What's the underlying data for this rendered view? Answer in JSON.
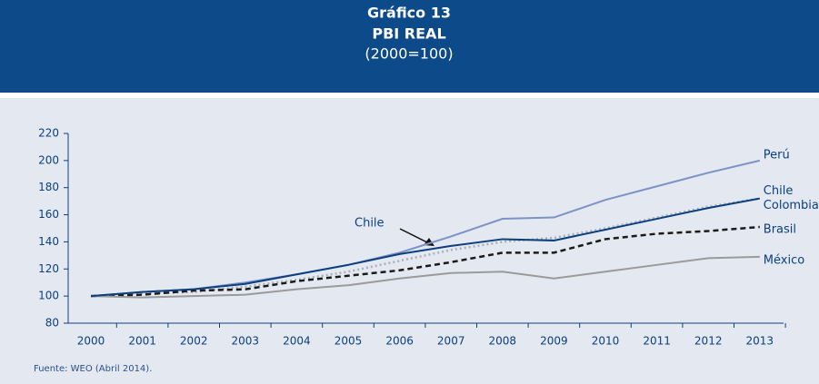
{
  "chart_data": {
    "type": "line",
    "title": "Gráfico 13",
    "subtitle": "PBI REAL",
    "note": "(2000=100)",
    "categories": [
      "2000",
      "2001",
      "2002",
      "2003",
      "2004",
      "2005",
      "2006",
      "2007",
      "2008",
      "2009",
      "2010",
      "2011",
      "2012",
      "2013"
    ],
    "series": [
      {
        "name": "Perú",
        "color": "#7b93c6",
        "style": "solid",
        "values": [
          100,
          103,
          105,
          110,
          116,
          123,
          132,
          144,
          157,
          158,
          171,
          181,
          191,
          200
        ]
      },
      {
        "name": "Colombia",
        "color": "#a9aeb8",
        "style": "dotted",
        "values": [
          100,
          102,
          103,
          107,
          112,
          118,
          126,
          134,
          140,
          143,
          150,
          158,
          166,
          172
        ]
      },
      {
        "name": "Brasil",
        "color": "#1a1a1a",
        "style": "dashed",
        "values": [
          100,
          101,
          104,
          105,
          111,
          115,
          119,
          125,
          132,
          132,
          142,
          146,
          148,
          151
        ]
      },
      {
        "name": "México",
        "color": "#9a9a9a",
        "style": "solid",
        "values": [
          100,
          99,
          100,
          101,
          105,
          108,
          113,
          117,
          118,
          113,
          118,
          123,
          128,
          129
        ]
      },
      {
        "name": "Chile",
        "color": "#0b3f7e",
        "style": "solid",
        "values": [
          100,
          103,
          105,
          109,
          116,
          123,
          131,
          137,
          142,
          141,
          149,
          157,
          165,
          172
        ]
      }
    ],
    "annotation": "Chile",
    "source": "Fuente: WEO (Abril 2014).",
    "ylim": [
      80,
      220
    ],
    "yticks": [
      80,
      100,
      120,
      140,
      160,
      180,
      200,
      220
    ],
    "grid": false
  }
}
